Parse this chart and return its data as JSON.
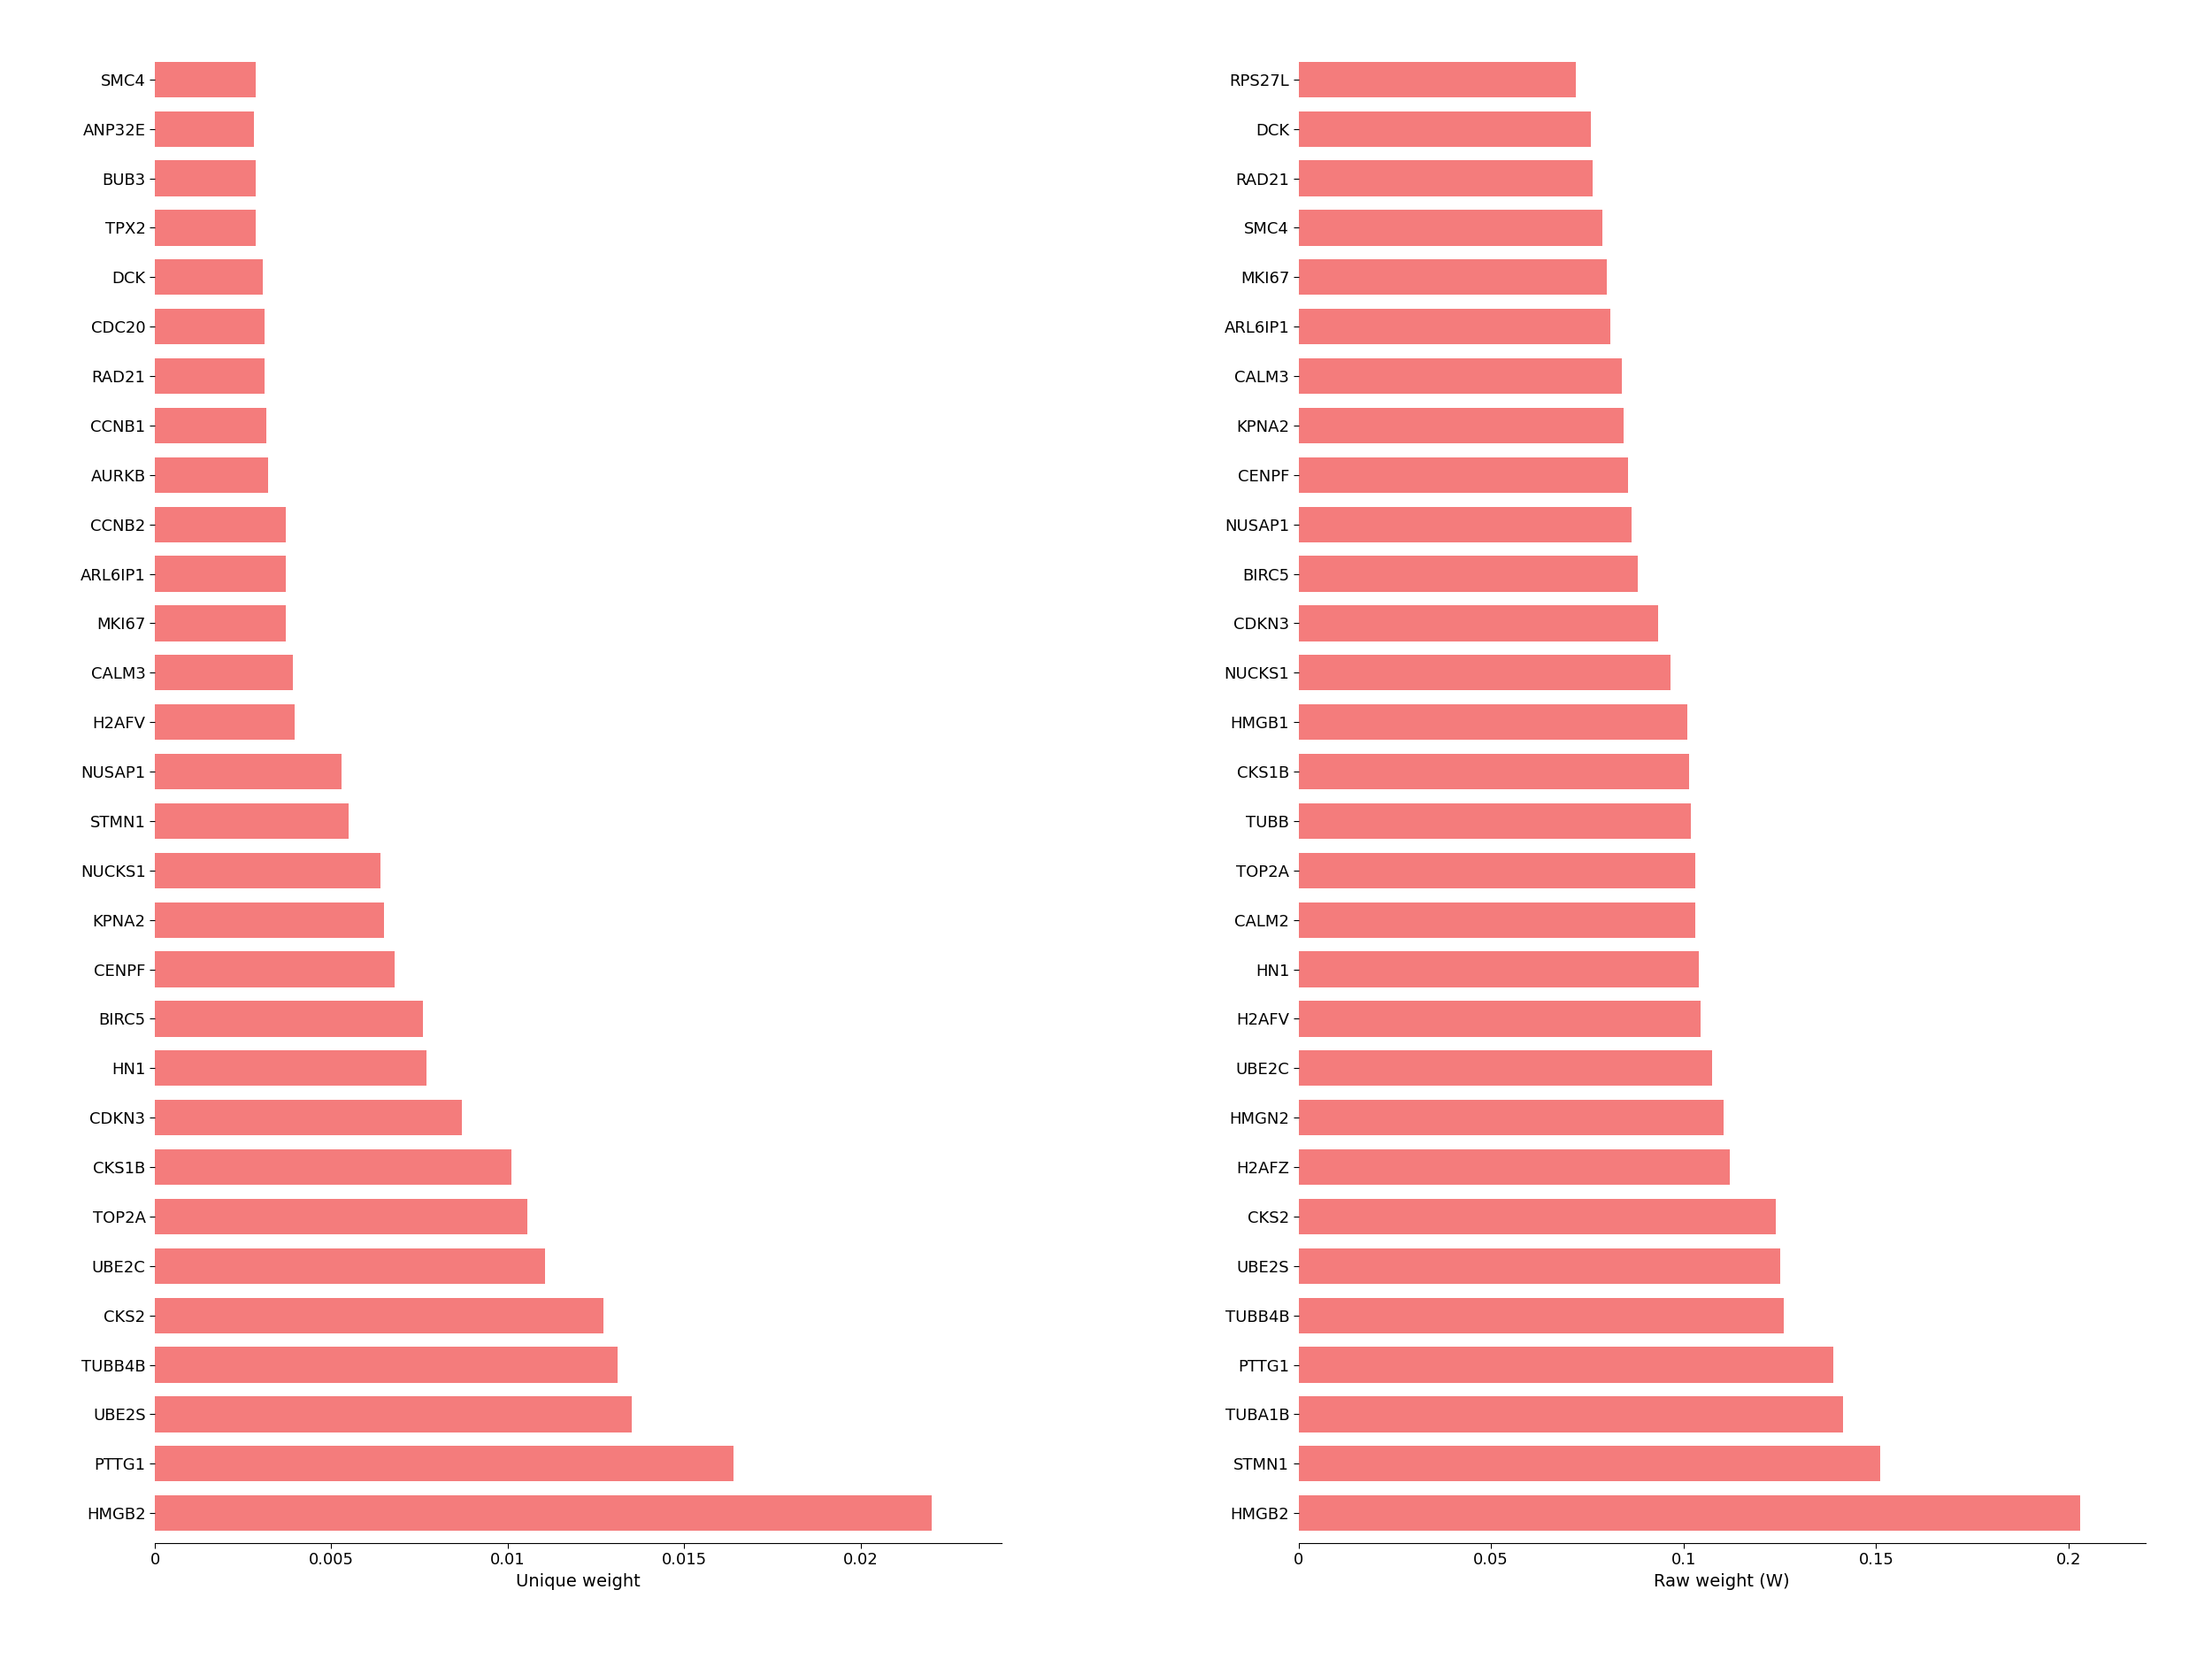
{
  "left": {
    "labels": [
      "SMC4",
      "ANP32E",
      "BUB3",
      "TPX2",
      "DCK",
      "CDC20",
      "RAD21",
      "CCNB1",
      "AURKB",
      "CCNB2",
      "ARL6IP1",
      "MKI67",
      "CALM3",
      "H2AFV",
      "NUSAP1",
      "STMN1",
      "NUCKS1",
      "KPNA2",
      "CENPF",
      "BIRC5",
      "HN1",
      "CDKN3",
      "CKS1B",
      "TOP2A",
      "UBE2C",
      "CKS2",
      "TUBB4B",
      "UBE2S",
      "PTTG1",
      "HMGB2"
    ],
    "values": [
      0.00285,
      0.0028,
      0.00285,
      0.00285,
      0.00305,
      0.0031,
      0.0031,
      0.00315,
      0.0032,
      0.0037,
      0.0037,
      0.0037,
      0.0039,
      0.00395,
      0.0053,
      0.0055,
      0.0064,
      0.0065,
      0.0068,
      0.0076,
      0.0077,
      0.0087,
      0.0101,
      0.01055,
      0.01105,
      0.0127,
      0.0131,
      0.0135,
      0.0164,
      0.022
    ],
    "xlabel": "Unique weight",
    "xlim": [
      0,
      0.024
    ],
    "xticks": [
      0,
      0.005,
      0.01,
      0.015,
      0.02
    ]
  },
  "right": {
    "labels": [
      "RPS27L",
      "DCK",
      "RAD21",
      "SMC4",
      "MKI67",
      "ARL6IP1",
      "CALM3",
      "KPNA2",
      "CENPF",
      "NUSAP1",
      "BIRC5",
      "CDKN3",
      "NUCKS1",
      "HMGB1",
      "CKS1B",
      "TUBB",
      "TOP2A",
      "CALM2",
      "HN1",
      "H2AFV",
      "UBE2C",
      "HMGN2",
      "H2AFZ",
      "CKS2",
      "UBE2S",
      "TUBB4B",
      "PTTG1",
      "TUBA1B",
      "STMN1",
      "HMGB2"
    ],
    "values": [
      0.072,
      0.076,
      0.0765,
      0.079,
      0.08,
      0.081,
      0.084,
      0.0845,
      0.0855,
      0.0865,
      0.088,
      0.0935,
      0.0965,
      0.101,
      0.1015,
      0.102,
      0.103,
      0.103,
      0.104,
      0.1045,
      0.1075,
      0.1105,
      0.112,
      0.124,
      0.125,
      0.126,
      0.139,
      0.1415,
      0.151,
      0.203
    ],
    "xlabel": "Raw weight (W)",
    "xlim": [
      0,
      0.22
    ],
    "xticks": [
      0,
      0.05,
      0.1,
      0.15,
      0.2
    ]
  },
  "bar_color": "#F47C7C",
  "bar_height": 0.72,
  "background_color": "#ffffff",
  "text_color": "#000000",
  "tick_fontsize": 13,
  "label_fontsize": 13,
  "xlabel_fontsize": 14
}
